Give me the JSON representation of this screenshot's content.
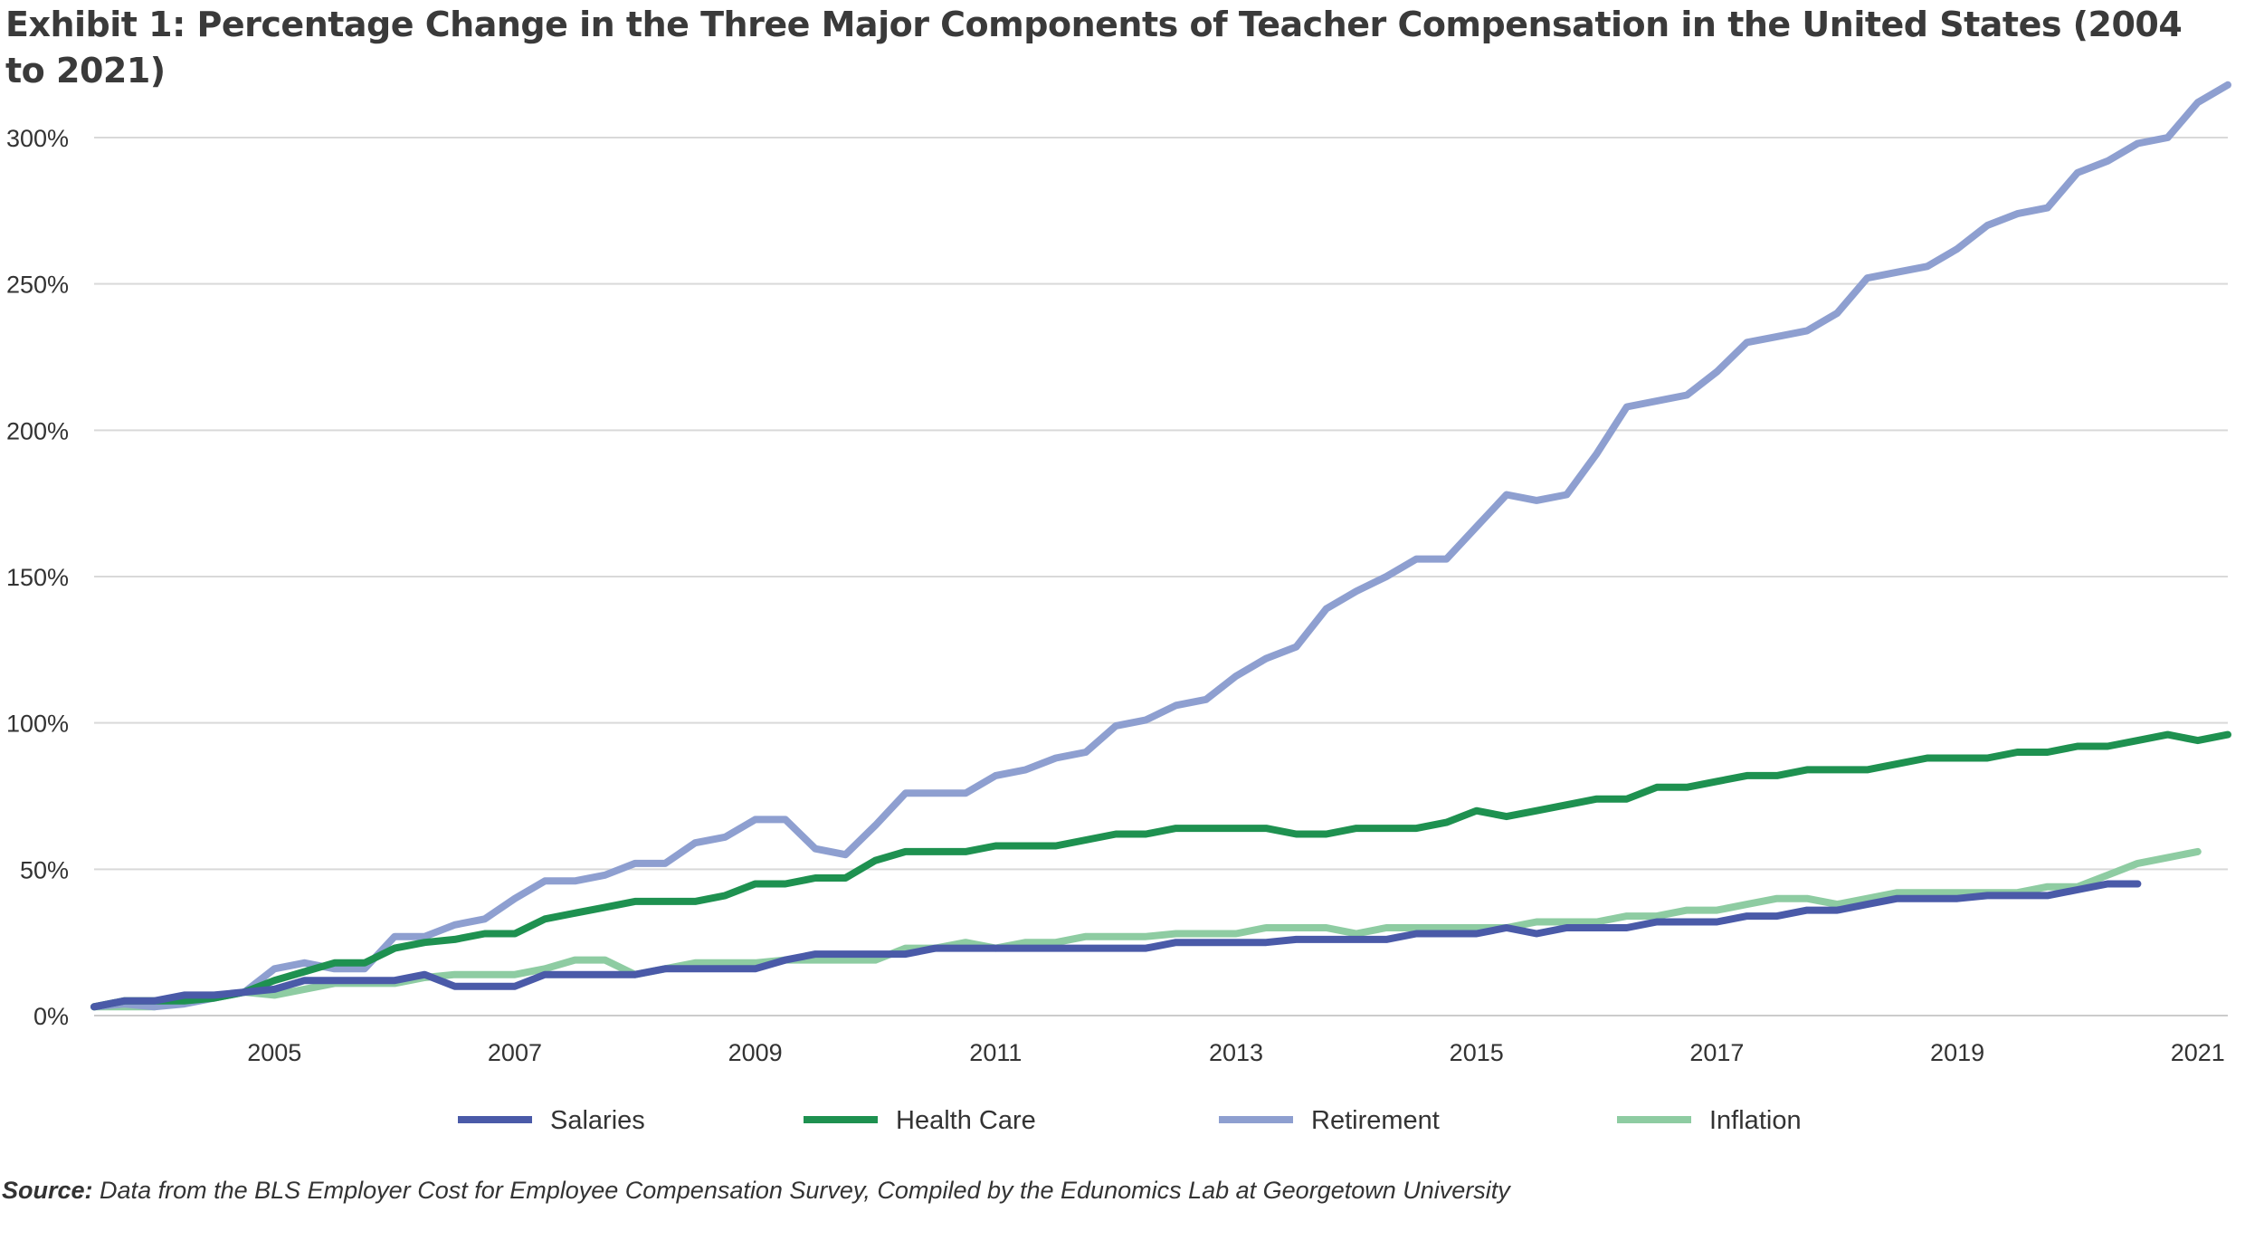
{
  "chart_data": {
    "type": "line",
    "title": "Exhibit 1: Percentage Change in the Three Major Components of Teacher Compensation in the United States (2004 to 2021)",
    "y_ticks": [
      "300%",
      "250%",
      "200%",
      "150%",
      "100%",
      "50%",
      "0%"
    ],
    "x_ticks": [
      "2005",
      "2007",
      "2009",
      "2011",
      "2013",
      "2015",
      "2017",
      "2019",
      "2021"
    ],
    "xlim": [
      2004.0,
      2021.75
    ],
    "ylim": [
      0,
      300
    ],
    "grid": true,
    "legend_position": "bottom",
    "series": [
      {
        "name": "Salaries",
        "color": "#4a5aa8",
        "points": [
          [
            2004.0,
            3
          ],
          [
            2004.25,
            5
          ],
          [
            2004.5,
            5
          ],
          [
            2004.75,
            7
          ],
          [
            2005.0,
            7
          ],
          [
            2005.25,
            8
          ],
          [
            2005.5,
            9
          ],
          [
            2005.75,
            12
          ],
          [
            2006.0,
            12
          ],
          [
            2006.25,
            12
          ],
          [
            2006.5,
            12
          ],
          [
            2006.75,
            14
          ],
          [
            2007.0,
            10
          ],
          [
            2007.25,
            10
          ],
          [
            2007.5,
            10
          ],
          [
            2007.75,
            14
          ],
          [
            2008.0,
            14
          ],
          [
            2008.25,
            14
          ],
          [
            2008.5,
            14
          ],
          [
            2008.75,
            16
          ],
          [
            2009.0,
            16
          ],
          [
            2009.25,
            16
          ],
          [
            2009.5,
            16
          ],
          [
            2009.75,
            19
          ],
          [
            2010.0,
            21
          ],
          [
            2010.25,
            21
          ],
          [
            2010.5,
            21
          ],
          [
            2010.75,
            21
          ],
          [
            2011.0,
            23
          ],
          [
            2011.25,
            23
          ],
          [
            2011.5,
            23
          ],
          [
            2011.75,
            23
          ],
          [
            2012.0,
            23
          ],
          [
            2012.25,
            23
          ],
          [
            2012.5,
            23
          ],
          [
            2012.75,
            23
          ],
          [
            2013.0,
            25
          ],
          [
            2013.25,
            25
          ],
          [
            2013.5,
            25
          ],
          [
            2013.75,
            25
          ],
          [
            2014.0,
            26
          ],
          [
            2014.25,
            26
          ],
          [
            2014.5,
            26
          ],
          [
            2014.75,
            26
          ],
          [
            2015.0,
            28
          ],
          [
            2015.25,
            28
          ],
          [
            2015.5,
            28
          ],
          [
            2015.75,
            30
          ],
          [
            2016.0,
            28
          ],
          [
            2016.25,
            30
          ],
          [
            2016.5,
            30
          ],
          [
            2016.75,
            30
          ],
          [
            2017.0,
            32
          ],
          [
            2017.25,
            32
          ],
          [
            2017.5,
            32
          ],
          [
            2017.75,
            34
          ],
          [
            2018.0,
            34
          ],
          [
            2018.25,
            36
          ],
          [
            2018.5,
            36
          ],
          [
            2018.75,
            38
          ],
          [
            2019.0,
            40
          ],
          [
            2019.25,
            40
          ],
          [
            2019.5,
            40
          ],
          [
            2019.75,
            41
          ],
          [
            2020.0,
            41
          ],
          [
            2020.25,
            41
          ],
          [
            2020.5,
            43
          ],
          [
            2020.75,
            45
          ],
          [
            2021.0,
            45
          ]
        ]
      },
      {
        "name": "Health Care",
        "color": "#1e9150",
        "points": [
          [
            2004.0,
            3
          ],
          [
            2004.25,
            5
          ],
          [
            2004.5,
            5
          ],
          [
            2004.75,
            5
          ],
          [
            2005.0,
            6
          ],
          [
            2005.25,
            8
          ],
          [
            2005.5,
            12
          ],
          [
            2005.75,
            15
          ],
          [
            2006.0,
            18
          ],
          [
            2006.25,
            18
          ],
          [
            2006.5,
            23
          ],
          [
            2006.75,
            25
          ],
          [
            2007.0,
            26
          ],
          [
            2007.25,
            28
          ],
          [
            2007.5,
            28
          ],
          [
            2007.75,
            33
          ],
          [
            2008.0,
            35
          ],
          [
            2008.25,
            37
          ],
          [
            2008.5,
            39
          ],
          [
            2008.75,
            39
          ],
          [
            2009.0,
            39
          ],
          [
            2009.25,
            41
          ],
          [
            2009.5,
            45
          ],
          [
            2009.75,
            45
          ],
          [
            2010.0,
            47
          ],
          [
            2010.25,
            47
          ],
          [
            2010.5,
            53
          ],
          [
            2010.75,
            56
          ],
          [
            2011.0,
            56
          ],
          [
            2011.25,
            56
          ],
          [
            2011.5,
            58
          ],
          [
            2011.75,
            58
          ],
          [
            2012.0,
            58
          ],
          [
            2012.25,
            60
          ],
          [
            2012.5,
            62
          ],
          [
            2012.75,
            62
          ],
          [
            2013.0,
            64
          ],
          [
            2013.25,
            64
          ],
          [
            2013.5,
            64
          ],
          [
            2013.75,
            64
          ],
          [
            2014.0,
            62
          ],
          [
            2014.25,
            62
          ],
          [
            2014.5,
            64
          ],
          [
            2014.75,
            64
          ],
          [
            2015.0,
            64
          ],
          [
            2015.25,
            66
          ],
          [
            2015.5,
            70
          ],
          [
            2015.75,
            68
          ],
          [
            2016.0,
            70
          ],
          [
            2016.25,
            72
          ],
          [
            2016.5,
            74
          ],
          [
            2016.75,
            74
          ],
          [
            2017.0,
            78
          ],
          [
            2017.25,
            78
          ],
          [
            2017.5,
            80
          ],
          [
            2017.75,
            82
          ],
          [
            2018.0,
            82
          ],
          [
            2018.25,
            84
          ],
          [
            2018.5,
            84
          ],
          [
            2018.75,
            84
          ],
          [
            2019.0,
            86
          ],
          [
            2019.25,
            88
          ],
          [
            2019.5,
            88
          ],
          [
            2019.75,
            88
          ],
          [
            2020.0,
            90
          ],
          [
            2020.25,
            90
          ],
          [
            2020.5,
            92
          ],
          [
            2020.75,
            92
          ],
          [
            2021.0,
            94
          ],
          [
            2021.25,
            96
          ],
          [
            2021.5,
            94
          ],
          [
            2021.75,
            96
          ]
        ]
      },
      {
        "name": "Retirement",
        "color": "#8e9fd0",
        "points": [
          [
            2004.0,
            3
          ],
          [
            2004.25,
            4
          ],
          [
            2004.5,
            3
          ],
          [
            2004.75,
            4
          ],
          [
            2005.0,
            6
          ],
          [
            2005.25,
            8
          ],
          [
            2005.5,
            16
          ],
          [
            2005.75,
            18
          ],
          [
            2006.0,
            16
          ],
          [
            2006.25,
            16
          ],
          [
            2006.5,
            27
          ],
          [
            2006.75,
            27
          ],
          [
            2007.0,
            31
          ],
          [
            2007.25,
            33
          ],
          [
            2007.5,
            40
          ],
          [
            2007.75,
            46
          ],
          [
            2008.0,
            46
          ],
          [
            2008.25,
            48
          ],
          [
            2008.5,
            52
          ],
          [
            2008.75,
            52
          ],
          [
            2009.0,
            59
          ],
          [
            2009.25,
            61
          ],
          [
            2009.5,
            67
          ],
          [
            2009.75,
            67
          ],
          [
            2010.0,
            57
          ],
          [
            2010.25,
            55
          ],
          [
            2010.5,
            65
          ],
          [
            2010.75,
            76
          ],
          [
            2011.0,
            76
          ],
          [
            2011.25,
            76
          ],
          [
            2011.5,
            82
          ],
          [
            2011.75,
            84
          ],
          [
            2012.0,
            88
          ],
          [
            2012.25,
            90
          ],
          [
            2012.5,
            99
          ],
          [
            2012.75,
            101
          ],
          [
            2013.0,
            106
          ],
          [
            2013.25,
            108
          ],
          [
            2013.5,
            116
          ],
          [
            2013.75,
            122
          ],
          [
            2014.0,
            126
          ],
          [
            2014.25,
            139
          ],
          [
            2014.5,
            145
          ],
          [
            2014.75,
            150
          ],
          [
            2015.0,
            156
          ],
          [
            2015.25,
            156
          ],
          [
            2015.5,
            167
          ],
          [
            2015.75,
            178
          ],
          [
            2016.0,
            176
          ],
          [
            2016.25,
            178
          ],
          [
            2016.5,
            192
          ],
          [
            2016.75,
            208
          ],
          [
            2017.0,
            210
          ],
          [
            2017.25,
            212
          ],
          [
            2017.5,
            220
          ],
          [
            2017.75,
            230
          ],
          [
            2018.0,
            232
          ],
          [
            2018.25,
            234
          ],
          [
            2018.5,
            240
          ],
          [
            2018.75,
            252
          ],
          [
            2019.0,
            254
          ],
          [
            2019.25,
            256
          ],
          [
            2019.5,
            262
          ],
          [
            2019.75,
            270
          ],
          [
            2020.0,
            274
          ],
          [
            2020.25,
            276
          ],
          [
            2020.5,
            288
          ],
          [
            2020.75,
            292
          ],
          [
            2021.0,
            298
          ],
          [
            2021.25,
            300
          ],
          [
            2021.5,
            312
          ],
          [
            2021.75,
            318
          ]
        ]
      },
      {
        "name": "Inflation",
        "color": "#8ecca2",
        "points": [
          [
            2004.0,
            3
          ],
          [
            2004.25,
            3
          ],
          [
            2004.5,
            3
          ],
          [
            2004.75,
            5
          ],
          [
            2005.0,
            6
          ],
          [
            2005.25,
            8
          ],
          [
            2005.5,
            7
          ],
          [
            2005.75,
            9
          ],
          [
            2006.0,
            11
          ],
          [
            2006.25,
            11
          ],
          [
            2006.5,
            11
          ],
          [
            2006.75,
            13
          ],
          [
            2007.0,
            14
          ],
          [
            2007.25,
            14
          ],
          [
            2007.5,
            14
          ],
          [
            2007.75,
            16
          ],
          [
            2008.0,
            19
          ],
          [
            2008.25,
            19
          ],
          [
            2008.5,
            14
          ],
          [
            2008.75,
            16
          ],
          [
            2009.0,
            18
          ],
          [
            2009.25,
            18
          ],
          [
            2009.5,
            18
          ],
          [
            2009.75,
            19
          ],
          [
            2010.0,
            19
          ],
          [
            2010.25,
            19
          ],
          [
            2010.5,
            19
          ],
          [
            2010.75,
            23
          ],
          [
            2011.0,
            23
          ],
          [
            2011.25,
            25
          ],
          [
            2011.5,
            23
          ],
          [
            2011.75,
            25
          ],
          [
            2012.0,
            25
          ],
          [
            2012.25,
            27
          ],
          [
            2012.5,
            27
          ],
          [
            2012.75,
            27
          ],
          [
            2013.0,
            28
          ],
          [
            2013.25,
            28
          ],
          [
            2013.5,
            28
          ],
          [
            2013.75,
            30
          ],
          [
            2014.0,
            30
          ],
          [
            2014.25,
            30
          ],
          [
            2014.5,
            28
          ],
          [
            2014.75,
            30
          ],
          [
            2015.0,
            30
          ],
          [
            2015.25,
            30
          ],
          [
            2015.5,
            30
          ],
          [
            2015.75,
            30
          ],
          [
            2016.0,
            32
          ],
          [
            2016.25,
            32
          ],
          [
            2016.5,
            32
          ],
          [
            2016.75,
            34
          ],
          [
            2017.0,
            34
          ],
          [
            2017.25,
            36
          ],
          [
            2017.5,
            36
          ],
          [
            2017.75,
            38
          ],
          [
            2018.0,
            40
          ],
          [
            2018.25,
            40
          ],
          [
            2018.5,
            38
          ],
          [
            2018.75,
            40
          ],
          [
            2019.0,
            42
          ],
          [
            2019.25,
            42
          ],
          [
            2019.5,
            42
          ],
          [
            2019.75,
            42
          ],
          [
            2020.0,
            42
          ],
          [
            2020.25,
            44
          ],
          [
            2020.5,
            44
          ],
          [
            2020.75,
            48
          ],
          [
            2021.0,
            52
          ],
          [
            2021.25,
            54
          ],
          [
            2021.5,
            56
          ]
        ]
      }
    ]
  },
  "source": {
    "label": "Source:",
    "text": "Data from the BLS Employer Cost for Employee Compensation Survey, Compiled by the Edunomics Lab at Georgetown University"
  }
}
